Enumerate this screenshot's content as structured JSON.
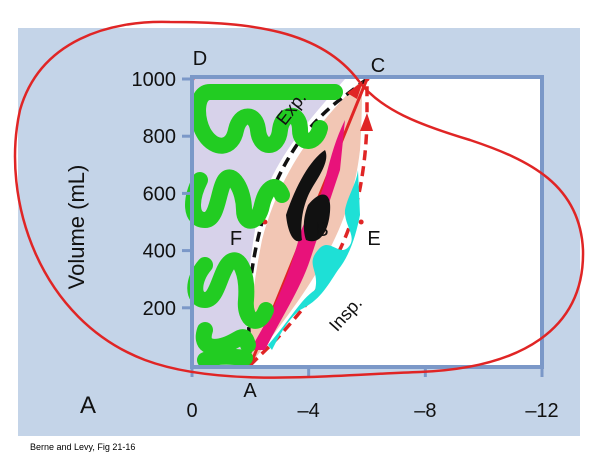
{
  "chart_data": {
    "type": "line",
    "ylabel": "Volume (mL)",
    "xlim": [
      0,
      -12
    ],
    "ylim": [
      0,
      1000
    ],
    "xticks": [
      "0",
      "–4",
      "–8",
      "–12"
    ],
    "yticks": [
      "200",
      "400",
      "600",
      "800",
      "1000"
    ],
    "panel_label": "A",
    "point_labels": {
      "A": "A",
      "B": "B",
      "C": "C",
      "D": "D",
      "E": "E",
      "F": "F"
    },
    "annotations": {
      "expiration": "Exp.",
      "inspiration": "Insp."
    },
    "points": {
      "A": [
        -2,
        0
      ],
      "B": [
        -4,
        500
      ],
      "C": [
        -6,
        1000
      ],
      "D": [
        0,
        1000
      ],
      "E": [
        -5.8,
        500
      ],
      "F": [
        -2.5,
        500
      ]
    },
    "series": [
      {
        "role": "inspiration",
        "x": [
          -2,
          -3.2,
          -4.6,
          -5.6,
          -6.0,
          -6.0
        ],
        "y": [
          0,
          120,
          300,
          520,
          760,
          1000
        ]
      },
      {
        "role": "expiration",
        "x": [
          -6,
          -4.2,
          -3.0,
          -2.3,
          -1.9,
          -2.0
        ],
        "y": [
          1000,
          860,
          680,
          480,
          240,
          0
        ]
      },
      {
        "role": "static compliance line",
        "x": [
          -2,
          -6
        ],
        "y": [
          0,
          1000
        ]
      }
    ],
    "grid": false
  },
  "caption": "Berne and Levy, Fig 21-16",
  "colors": {
    "panel_bg": "#c4d4e8",
    "frame": "#7b98c8",
    "marker_red": "#e02525",
    "dash_black": "#111111",
    "pink_fill": "#f2c6b4",
    "magenta": "#e8127a",
    "cyan": "#1ee0d6",
    "green": "#22cc22",
    "lavender": "#d7d2ea"
  }
}
